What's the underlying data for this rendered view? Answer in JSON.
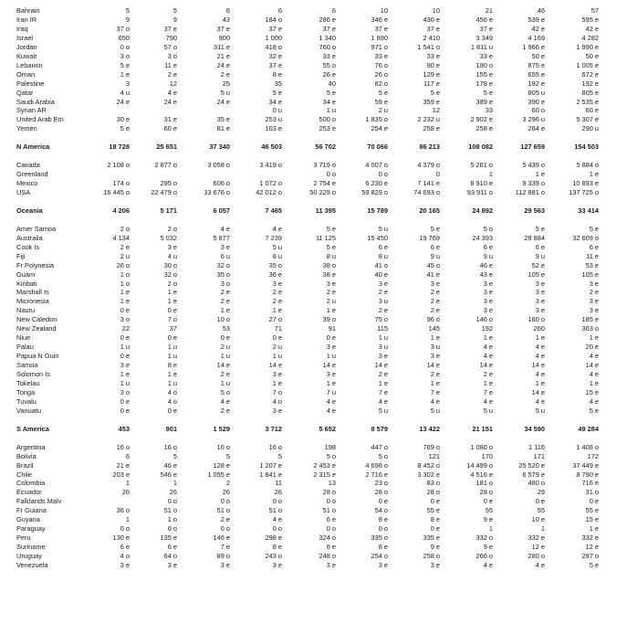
{
  "table": {
    "rows": [
      {
        "kind": "item",
        "name": "Bahrain",
        "values": [
          "5",
          "5",
          "6",
          "6",
          "6",
          "10",
          "10",
          "21",
          "46",
          "57"
        ]
      },
      {
        "kind": "item",
        "name": "Iran IR",
        "values": [
          "9",
          "9",
          "43",
          "184 o",
          "286 e",
          "346 e",
          "430 e",
          "456 e",
          "539 e",
          "595 e"
        ]
      },
      {
        "kind": "item",
        "name": "Iraq",
        "values": [
          "37 o",
          "37 e",
          "37 e",
          "37 e",
          "37 e",
          "37 e",
          "37 e",
          "37 e",
          "42 e",
          "42 e"
        ]
      },
      {
        "kind": "item",
        "name": "Israel",
        "values": [
          "650",
          "790",
          "900",
          "1 000",
          "1 340",
          "1 890",
          "2 410",
          "3 349",
          "4 169",
          "4 282"
        ]
      },
      {
        "kind": "item",
        "name": "Jordan",
        "values": [
          "0 o",
          "57 o",
          "311 e",
          "418 o",
          "760 o",
          "971 o",
          "1 541 o",
          "1 811 u",
          "1 966 e",
          "1 990 e"
        ]
      },
      {
        "kind": "item",
        "name": "Kuwait",
        "values": [
          "3 o",
          "3 o",
          "21 e",
          "32 e",
          "33 e",
          "33 e",
          "33 e",
          "33 e",
          "50 e",
          "50 e"
        ]
      },
      {
        "kind": "item",
        "name": "Lebanon",
        "values": [
          "5 e",
          "11 e",
          "24 e",
          "37 e",
          "55 o",
          "76 o",
          "90 e",
          "190 o",
          "875 e",
          "1 005 e"
        ]
      },
      {
        "kind": "item",
        "name": "Oman",
        "values": [
          "1 e",
          "2 e",
          "2 e",
          "8 e",
          "26 e",
          "26 o",
          "129 e",
          "155 e",
          "655 e",
          "672 e"
        ]
      },
      {
        "kind": "item",
        "name": "Palestine",
        "values": [
          "3",
          "12",
          "25",
          "35",
          "40",
          "82 o",
          "117 e",
          "178 e",
          "192 e",
          "192 e"
        ]
      },
      {
        "kind": "item",
        "name": "Qatar",
        "values": [
          "4 u",
          "4 e",
          "5 u",
          "5 e",
          "5 e",
          "5 e",
          "5 e",
          "5 e",
          "805 u",
          "805 e"
        ]
      },
      {
        "kind": "item",
        "name": "Saudi Arabia",
        "values": [
          "24 e",
          "24 e",
          "24 e",
          "34 e",
          "34 e",
          "59 e",
          "359 e",
          "389 e",
          "390 e",
          "2 535 e"
        ]
      },
      {
        "kind": "item",
        "name": "Syrian AR",
        "values": [
          "",
          "",
          "",
          "0 u",
          "1 u",
          "2 u",
          "12",
          "33",
          "60 o",
          "60 e"
        ]
      },
      {
        "kind": "item",
        "name": "United Arab Em",
        "values": [
          "30 e",
          "31 e",
          "35 e",
          "253 u",
          "500 o",
          "1 835 o",
          "2 232 u",
          "2 902 e",
          "3 296 u",
          "5 307 e"
        ]
      },
      {
        "kind": "item",
        "name": "Yemen",
        "values": [
          "5 e",
          "60 e",
          "81 e",
          "103 e",
          "253 e",
          "254 e",
          "258 e",
          "258 e",
          "264 e",
          "290 u"
        ]
      },
      {
        "kind": "gap"
      },
      {
        "kind": "region",
        "name": "N America",
        "values": [
          "18 728",
          "25 651",
          "37 340",
          "46 503",
          "56 702",
          "70 066",
          "86 213",
          "108 082",
          "127 659",
          "154 503"
        ]
      },
      {
        "kind": "gap"
      },
      {
        "kind": "item",
        "name": "Canada",
        "values": [
          "2 108 o",
          "2 877 o",
          "3 058 o",
          "3 419 o",
          "3 719 o",
          "4 007 o",
          "4 379 o",
          "5 261 o",
          "5 439 o",
          "5 884 o"
        ]
      },
      {
        "kind": "item",
        "name": "Greenland",
        "values": [
          "",
          "",
          "",
          "",
          "0 o",
          "0 o",
          "0",
          "1",
          "1 e",
          "1 e"
        ]
      },
      {
        "kind": "item",
        "name": "Mexico",
        "values": [
          "174 o",
          "295 o",
          "606 o",
          "1 072 o",
          "2 754 e",
          "6 230 e",
          "7 141 e",
          "8 910 e",
          "9 339 o",
          "10 893 e"
        ]
      },
      {
        "kind": "item",
        "name": "USA",
        "values": [
          "16 445 o",
          "22 479 o",
          "33 676 o",
          "42 012 o",
          "50 229 o",
          "59 829 o",
          "74 693 o",
          "93 911 o",
          "112 881 o",
          "137 725 o"
        ]
      },
      {
        "kind": "gap"
      },
      {
        "kind": "region",
        "name": "Oceania",
        "values": [
          "4 206",
          "5 171",
          "6 057",
          "7 465",
          "11 395",
          "15 789",
          "20 165",
          "24 892",
          "29 563",
          "33 414"
        ]
      },
      {
        "kind": "gap"
      },
      {
        "kind": "item",
        "name": "Amer Samoa",
        "values": [
          "2 o",
          "2 o",
          "4 e",
          "4 e",
          "5 e",
          "5 u",
          "5 e",
          "5 o",
          "5 e",
          "5 e"
        ]
      },
      {
        "kind": "item",
        "name": "Australia",
        "values": [
          "4 134",
          "5 032",
          "5 877",
          "7 239",
          "11 125",
          "15 450",
          "19 769",
          "24 393",
          "28 884",
          "32 609 o"
        ]
      },
      {
        "kind": "item",
        "name": "Cook Is",
        "values": [
          "2 e",
          "3 e",
          "3 e",
          "5 u",
          "5 e",
          "6 e",
          "6 e",
          "6 e",
          "6 e",
          "6 e"
        ]
      },
      {
        "kind": "item",
        "name": "Fiji",
        "values": [
          "2 u",
          "4 u",
          "6 u",
          "8 u",
          "8 u",
          "8 u",
          "9 u",
          "9 u",
          "9 u",
          "11 e"
        ]
      },
      {
        "kind": "item",
        "name": "Fr Polynesia",
        "values": [
          "26 o",
          "30 o",
          "32 o",
          "35 o",
          "38 o",
          "41 o",
          "45 o",
          "46 e",
          "52 e",
          "53 e"
        ]
      },
      {
        "kind": "item",
        "name": "Guam",
        "values": [
          "1 o",
          "32 o",
          "35 o",
          "36 e",
          "38 e",
          "40 e",
          "41 e",
          "43 e",
          "105 e",
          "105 e"
        ]
      },
      {
        "kind": "item",
        "name": "Kiribati",
        "values": [
          "1 o",
          "2 o",
          "3 o",
          "3 e",
          "3 e",
          "3 e",
          "3 e",
          "3 e",
          "3 e",
          "3 e"
        ]
      },
      {
        "kind": "item",
        "name": "Marshall Is",
        "values": [
          "1 e",
          "1 e",
          "2 e",
          "2 e",
          "2 e",
          "2 e",
          "2 e",
          "3 e",
          "3 e",
          "2 e"
        ]
      },
      {
        "kind": "item",
        "name": "Micronesia",
        "values": [
          "1 e",
          "1 e",
          "2 e",
          "2 e",
          "2 u",
          "3 u",
          "2 e",
          "3 e",
          "3 e",
          "3 e"
        ]
      },
      {
        "kind": "item",
        "name": "Nauru",
        "values": [
          "0 e",
          "0 e",
          "1 e",
          "1 e",
          "1 e",
          "2 e",
          "2 e",
          "3 e",
          "3 e",
          "3 e"
        ]
      },
      {
        "kind": "item",
        "name": "New Caledon",
        "values": [
          "3 o",
          "7 o",
          "10 o",
          "27 o",
          "39 o",
          "75 o",
          "96 o",
          "146 o",
          "180 o",
          "185 e"
        ]
      },
      {
        "kind": "item",
        "name": "New Zealand",
        "values": [
          "22",
          "37",
          "53",
          "71",
          "91",
          "115",
          "145",
          "192",
          "260",
          "363 o"
        ]
      },
      {
        "kind": "item",
        "name": "Niue",
        "values": [
          "0 e",
          "0 e",
          "0 e",
          "0 e",
          "0 e",
          "1 u",
          "1 e",
          "1 e",
          "1 e",
          "1 e"
        ]
      },
      {
        "kind": "item",
        "name": "Palau",
        "values": [
          "1 u",
          "1 u",
          "2 u",
          "2 u",
          "3 e",
          "3 u",
          "3 u",
          "4 e",
          "4 e",
          "20 e"
        ]
      },
      {
        "kind": "item",
        "name": "Papua N Guin",
        "values": [
          "0 e",
          "1 u",
          "1 u",
          "1 u",
          "1 u",
          "3 e",
          "3 e",
          "4 e",
          "4 e",
          "4 e"
        ]
      },
      {
        "kind": "item",
        "name": "Samoa",
        "values": [
          "3 e",
          "8 e",
          "14 e",
          "14 e",
          "14 e",
          "14 e",
          "14 e",
          "14 e",
          "14 e",
          "14 e"
        ]
      },
      {
        "kind": "item",
        "name": "Solomon Is",
        "values": [
          "1 e",
          "1 e",
          "2 e",
          "3 e",
          "3 e",
          "2 e",
          "2 e",
          "2 e",
          "4 e",
          "4 e"
        ]
      },
      {
        "kind": "item",
        "name": "Tokelau",
        "values": [
          "1 u",
          "1 u",
          "1 u",
          "1 e",
          "1 e",
          "1 e",
          "1 e",
          "1 e",
          "1 e",
          "1 e"
        ]
      },
      {
        "kind": "item",
        "name": "Tonga",
        "values": [
          "3 o",
          "4 o",
          "5 o",
          "7 o",
          "7 u",
          "7 e",
          "7 e",
          "7 e",
          "14 e",
          "15 e"
        ]
      },
      {
        "kind": "item",
        "name": "Tuvalu",
        "values": [
          "0 e",
          "4 o",
          "4 e",
          "4 o",
          "4 e",
          "4 e",
          "4 e",
          "4 e",
          "4 e",
          "4 e"
        ]
      },
      {
        "kind": "item",
        "name": "Vanuatu",
        "values": [
          "0 e",
          "0 e",
          "2 e",
          "3 e",
          "4 e",
          "5 u",
          "5 u",
          "5 u",
          "5 u",
          "5 e"
        ]
      },
      {
        "kind": "gap"
      },
      {
        "kind": "region",
        "name": "S America",
        "values": [
          "453",
          "901",
          "1 529",
          "3 712",
          "5 652",
          "8 579",
          "13 422",
          "21 151",
          "34 590",
          "49 284"
        ]
      },
      {
        "kind": "gap"
      },
      {
        "kind": "item",
        "name": "Argentina",
        "values": [
          "16 o",
          "16 o",
          "16 o",
          "16 o",
          "198",
          "447 o",
          "769 o",
          "1 080 o",
          "1 116",
          "1 408 o"
        ]
      },
      {
        "kind": "item",
        "name": "Bolivia",
        "values": [
          "6",
          "5",
          "5",
          "5",
          "5 o",
          "5 o",
          "121",
          "170",
          "171",
          "172"
        ]
      },
      {
        "kind": "item",
        "name": "Brazil",
        "values": [
          "21 e",
          "46 e",
          "128 e",
          "1 207 e",
          "2 453 e",
          "4 698 o",
          "8 452 o",
          "14 499 o",
          "25 520 e",
          "37 449 e"
        ]
      },
      {
        "kind": "item",
        "name": "Chile",
        "values": [
          "203 e",
          "546 e",
          "1 055 e",
          "1 841 e",
          "2 315 e",
          "2 716 e",
          "3 302 e",
          "4 516 e",
          "6 579 e",
          "8 790 e"
        ]
      },
      {
        "kind": "item",
        "name": "Colombia",
        "values": [
          "1",
          "1",
          "2",
          "11",
          "13",
          "23 o",
          "83 o",
          "181 o",
          "480 o",
          "716 e"
        ]
      },
      {
        "kind": "item",
        "name": "Ecuador",
        "values": [
          "26",
          "26",
          "26",
          "26",
          "28 o",
          "28 o",
          "28 o",
          "28 o",
          "29",
          "31 o"
        ]
      },
      {
        "kind": "item",
        "name": "Falklands Malv",
        "values": [
          "",
          "0 o",
          "0 o",
          "0 o",
          "0 o",
          "0 e",
          "0 e",
          "0 e",
          "0 e",
          "0 e"
        ]
      },
      {
        "kind": "item",
        "name": "Fr Guiana",
        "values": [
          "36 o",
          "51 o",
          "51 o",
          "51 o",
          "51 o",
          "54 o",
          "55 e",
          "55",
          "55",
          "55 e"
        ]
      },
      {
        "kind": "item",
        "name": "Guyana",
        "values": [
          "1",
          "1 o",
          "2 e",
          "4 e",
          "6 e",
          "8 e",
          "8 e",
          "9 e",
          "10 e",
          "15 e"
        ]
      },
      {
        "kind": "item",
        "name": "Paraguay",
        "values": [
          "0 o",
          "0 o",
          "0 o",
          "0 o",
          "0 o",
          "0 o",
          "0 e",
          "1",
          "1",
          "1 e"
        ]
      },
      {
        "kind": "item",
        "name": "Peru",
        "values": [
          "130 e",
          "135 e",
          "146 e",
          "298 e",
          "324 o",
          "335 o",
          "335 e",
          "332 o",
          "332 e",
          "332 e"
        ]
      },
      {
        "kind": "item",
        "name": "Suriname",
        "values": [
          "6 e",
          "6 e",
          "7 e",
          "8 e",
          "8 e",
          "8 e",
          "9 e",
          "9 e",
          "12 e",
          "12 e"
        ]
      },
      {
        "kind": "item",
        "name": "Uruguay",
        "values": [
          "4 o",
          "64 o",
          "89 o",
          "243 o",
          "248 o",
          "254 o",
          "258 o",
          "266 o",
          "280 o",
          "297 o"
        ]
      },
      {
        "kind": "item",
        "name": "Venezuela",
        "values": [
          "3 e",
          "3 e",
          "3 e",
          "3 e",
          "3 e",
          "3 e",
          "3 e",
          "4 e",
          "4 e",
          "5 e"
        ]
      }
    ]
  }
}
